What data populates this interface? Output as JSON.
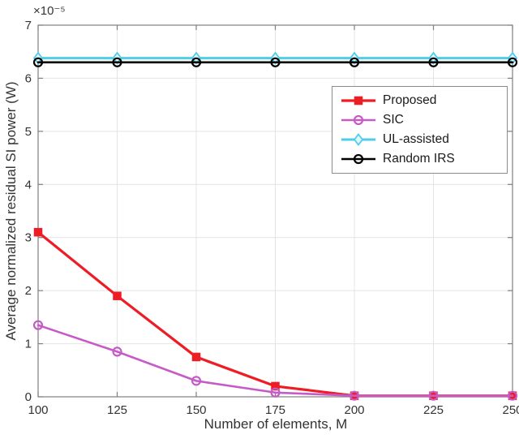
{
  "chart_data": {
    "type": "line",
    "title": "",
    "xlabel": "Number of elements, M",
    "ylabel": "Average normalized residual SI power (W)",
    "y_scale_label": "×10⁻⁵",
    "y_values_unit": "1e-5 W",
    "x": [
      100,
      125,
      150,
      175,
      200,
      225,
      250
    ],
    "xlim": [
      100,
      250
    ],
    "ylim": [
      0,
      7
    ],
    "xticks": [
      "100",
      "125",
      "150",
      "175",
      "200",
      "225",
      "250"
    ],
    "yticks": [
      "0",
      "1",
      "2",
      "3",
      "4",
      "5",
      "6",
      "7"
    ],
    "xtick_values": [
      100,
      125,
      150,
      175,
      200,
      225,
      250
    ],
    "ytick_values": [
      0,
      1,
      2,
      3,
      4,
      5,
      6,
      7
    ],
    "grid": true,
    "legend": {
      "position": "top-right-inside",
      "entries": [
        "Proposed",
        "SIC",
        "UL-assisted",
        "Random IRS"
      ]
    },
    "series": [
      {
        "name": "Proposed",
        "color": "#ee1c25",
        "marker": "square",
        "marker_fill": "#ee1c25",
        "line_width": 3.2,
        "values": [
          3.1,
          1.9,
          0.75,
          0.2,
          0.02,
          0.02,
          0.02
        ]
      },
      {
        "name": "SIC",
        "color": "#c65bc6",
        "marker": "circle",
        "marker_fill": "none",
        "line_width": 2.6,
        "values": [
          1.35,
          0.85,
          0.3,
          0.08,
          0.02,
          0.02,
          0.02
        ]
      },
      {
        "name": "UL-assisted",
        "color": "#4ecde9",
        "marker": "diamond",
        "marker_fill": "#dff6fc",
        "line_width": 3,
        "values": [
          6.38,
          6.38,
          6.38,
          6.38,
          6.38,
          6.38,
          6.38
        ]
      },
      {
        "name": "Random IRS",
        "color": "#000000",
        "marker": "circle",
        "marker_fill": "none",
        "line_width": 2.6,
        "values": [
          6.3,
          6.3,
          6.3,
          6.3,
          6.3,
          6.3,
          6.3
        ]
      }
    ],
    "style": {
      "axis_color": "#7f7f7f",
      "grid_color": "#e4e4e4",
      "tick_label_color": "#333333",
      "label_color": "#333333",
      "legend_border_color": "#8c8c8c",
      "background": "#ffffff"
    }
  }
}
